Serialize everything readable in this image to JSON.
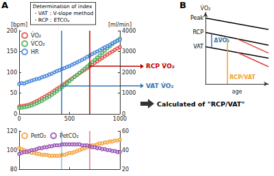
{
  "chart_data": [
    {
      "panel": "A",
      "type": "scatter",
      "marker": "open_circle",
      "grid": false,
      "y_label": "[bpm]",
      "y2_label": "[ml/min]",
      "box": [
        "Determination of index",
        "・VAT：V-slope method",
        "・RCP：ETCO₂"
      ],
      "xlim": [
        0,
        1000
      ],
      "xticks": [
        0,
        500,
        1000
      ],
      "ylim": [
        0,
        200
      ],
      "yticks": [
        0,
        50,
        100,
        150,
        200
      ],
      "y2lim": [
        0,
        4000
      ],
      "y2ticks": [
        0,
        1000,
        2000,
        3000,
        4000
      ],
      "x": [
        0,
        25,
        50,
        75,
        100,
        125,
        150,
        175,
        200,
        225,
        250,
        275,
        300,
        325,
        350,
        375,
        400,
        425,
        450,
        475,
        500,
        525,
        550,
        575,
        600,
        625,
        650,
        675,
        700,
        725,
        750,
        775,
        800,
        825,
        850,
        875,
        900,
        925,
        950,
        975,
        1000
      ],
      "series": [
        {
          "name": "V̇O₂",
          "color": "#e2403a",
          "axis": "y2",
          "values": [
            350,
            380,
            400,
            420,
            450,
            500,
            560,
            620,
            680,
            750,
            820,
            890,
            960,
            1040,
            1120,
            1200,
            1280,
            1370,
            1450,
            1540,
            1620,
            1700,
            1790,
            1870,
            1960,
            2040,
            2120,
            2200,
            2290,
            2370,
            2450,
            2530,
            2610,
            2690,
            2770,
            2850,
            2930,
            3000,
            3080,
            3150,
            3220
          ]
        },
        {
          "name": "V̇CO₂",
          "color": "#3faa50",
          "axis": "y2",
          "values": [
            280,
            300,
            320,
            340,
            370,
            410,
            460,
            510,
            570,
            630,
            700,
            770,
            840,
            920,
            1000,
            1090,
            1180,
            1280,
            1380,
            1480,
            1580,
            1680,
            1780,
            1880,
            1980,
            2080,
            2180,
            2280,
            2380,
            2490,
            2600,
            2710,
            2820,
            2930,
            3040,
            3150,
            3250,
            3350,
            3440,
            3530,
            3620
          ]
        },
        {
          "name": "HR",
          "color": "#3b7dd8",
          "values": [
            72,
            74,
            73,
            76,
            78,
            80,
            82,
            84,
            85,
            88,
            90,
            92,
            95,
            97,
            100,
            103,
            105,
            108,
            110,
            113,
            115,
            118,
            121,
            124,
            127,
            130,
            133,
            137,
            140,
            144,
            147,
            150,
            153,
            157,
            160,
            163,
            166,
            170,
            173,
            176,
            178
          ]
        }
      ],
      "thresholds": [
        {
          "label": "RCP V̇O₂",
          "x": 700,
          "value": 2290,
          "color": "#c00000"
        },
        {
          "label": "VAT V̇O₂",
          "x": 420,
          "value": 1350,
          "color": "#2e75b6"
        }
      ],
      "result": "Calculated of \"RCP/VAT\""
    },
    {
      "type": "scatter",
      "marker": "open_circle",
      "grid": false,
      "tick_labels": "y",
      "xlim": [
        0,
        1000
      ],
      "xticks": [
        0,
        500,
        1000
      ],
      "ylim": [
        80,
        120
      ],
      "yticks": [
        80,
        100,
        120
      ],
      "y2lim": [
        20,
        60
      ],
      "y2ticks": [
        20,
        40,
        60
      ],
      "x": [
        0,
        25,
        50,
        75,
        100,
        125,
        150,
        175,
        200,
        225,
        250,
        275,
        300,
        325,
        350,
        375,
        400,
        425,
        450,
        475,
        500,
        525,
        550,
        575,
        600,
        625,
        650,
        675,
        700,
        725,
        750,
        775,
        800,
        825,
        850,
        875,
        900,
        925,
        950,
        975,
        1000
      ],
      "series": [
        {
          "name": "PetO₂",
          "color": "#f39a2a",
          "values": [
            102,
            101,
            100,
            99,
            98,
            97,
            97,
            96,
            96,
            95,
            95,
            95,
            94,
            94,
            94,
            94,
            94,
            95,
            95,
            96,
            97,
            97,
            98,
            99,
            100,
            101,
            102,
            103,
            104,
            105,
            105,
            106,
            107,
            107,
            108,
            108,
            109,
            109,
            110,
            110,
            111
          ]
        },
        {
          "name": "PetCO₂",
          "color": "#8e44ad",
          "axis": "y2",
          "values": [
            36,
            37,
            38,
            38,
            39,
            40,
            40,
            41,
            42,
            42,
            43,
            43,
            44,
            44,
            45,
            45,
            45,
            46,
            46,
            46,
            46,
            46,
            46,
            46,
            46,
            45,
            45,
            45,
            44,
            43,
            43,
            42,
            42,
            41,
            41,
            40,
            40,
            39,
            39,
            38,
            38
          ]
        }
      ]
    },
    {
      "panel": "B",
      "type": "line",
      "grid": false,
      "tick_labels": false,
      "x_label": "age",
      "y_label": "V̇O₂",
      "xlim": [
        0,
        10
      ],
      "ylim": [
        0,
        10
      ],
      "series": [
        {
          "name": "Peak",
          "color": "#000000",
          "x": [
            0,
            10
          ],
          "values": [
            9.2,
            7.6
          ]
        },
        {
          "name": "RCP",
          "color": "#000000",
          "x": [
            0,
            10
          ],
          "values": [
            7.2,
            5.4
          ]
        },
        {
          "name": "VAT",
          "color": "#000000",
          "x": [
            0,
            10
          ],
          "values": [
            5.2,
            3.6
          ]
        },
        {
          "color": "#e0403a",
          "x": [
            5,
            10
          ],
          "values": [
            6.3,
            4.3
          ]
        },
        {
          "color": "#e0403a",
          "x": [
            5,
            10
          ],
          "values": [
            4.4,
            2.4
          ]
        }
      ],
      "annotations": [
        {
          "text": "ΔV̇O₂",
          "color": "#2e75b6",
          "x": 1,
          "y": [
            5.04,
            7.02
          ]
        },
        {
          "text": "RCP/VAT",
          "color": "#f0a030",
          "x": 3.5,
          "y": [
            0,
            6.57
          ]
        }
      ]
    }
  ]
}
